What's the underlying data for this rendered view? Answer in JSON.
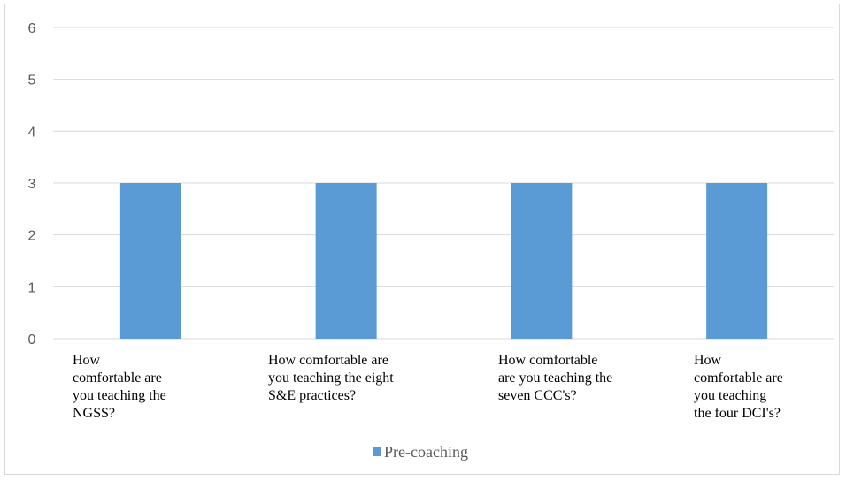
{
  "chart_data": {
    "type": "bar",
    "categories": [
      [
        "How",
        "comfortable are",
        "you teaching the",
        "NGSS?"
      ],
      [
        "How comfortable are",
        "you teaching the eight",
        "S&E practices?"
      ],
      [
        "How comfortable",
        "are you teaching the",
        "seven CCC's?"
      ],
      [
        "How",
        "comfortable are",
        "you teaching",
        "the four DCI's?"
      ]
    ],
    "series": [
      {
        "name": "Pre-coaching",
        "values": [
          3,
          3,
          3,
          3
        ],
        "color": "#5b9bd5"
      }
    ],
    "ylim": [
      0,
      6
    ],
    "yticks": [
      0,
      1,
      2,
      3,
      4,
      5,
      6
    ],
    "grid": true,
    "legend_position": "bottom"
  }
}
